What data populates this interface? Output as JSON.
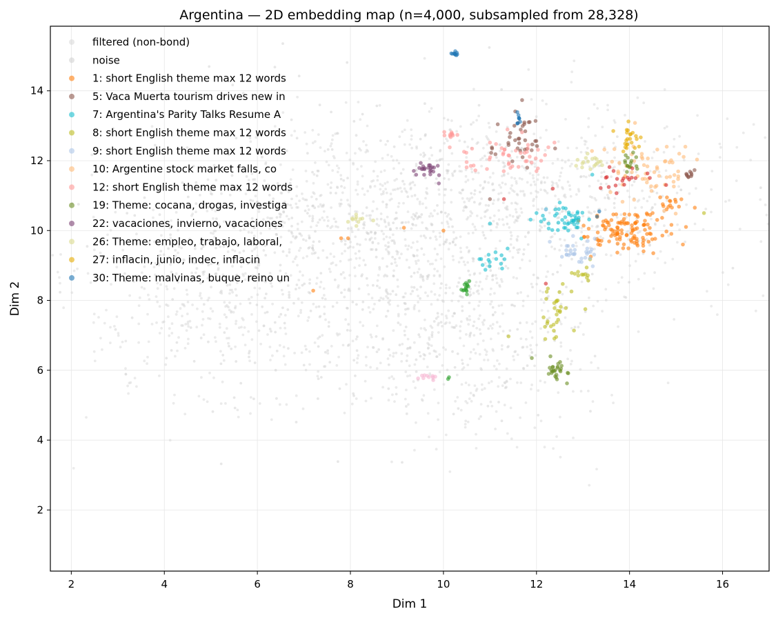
{
  "chart_data": {
    "type": "scatter",
    "title": "Argentina — 2D embedding map (n=4,000, subsampled from 28,328)",
    "xlabel": "Dim 1",
    "ylabel": "Dim 2",
    "xlim": [
      1.55,
      17.0
    ],
    "ylim": [
      0.25,
      15.85
    ],
    "xticks": [
      2,
      4,
      6,
      8,
      10,
      12,
      14,
      16
    ],
    "yticks": [
      2,
      4,
      6,
      8,
      10,
      12,
      14
    ],
    "grid": true,
    "legend_position": "top-left",
    "background_series": [
      {
        "name": "filtered (non-bond)",
        "color": "#d3d3d3",
        "regions": [
          {
            "cx": 5.2,
            "cy": 8.0,
            "sx": 1.6,
            "sy": 1.6,
            "n": 450
          },
          {
            "cx": 8.5,
            "cy": 10.5,
            "sx": 1.5,
            "sy": 1.4,
            "n": 500
          },
          {
            "cx": 10.5,
            "cy": 7.0,
            "sx": 1.3,
            "sy": 1.5,
            "n": 420
          },
          {
            "cx": 11.8,
            "cy": 11.0,
            "sx": 1.6,
            "sy": 1.3,
            "n": 380
          },
          {
            "cx": 13.8,
            "cy": 11.0,
            "sx": 1.5,
            "sy": 1.4,
            "n": 200
          }
        ]
      },
      {
        "name": "noise",
        "color": "#c9c9c9",
        "regions": [
          {
            "cx": 9.5,
            "cy": 9.0,
            "sx": 2.2,
            "sy": 2.2,
            "n": 300
          },
          {
            "cx": 6.5,
            "cy": 9.5,
            "sx": 2.0,
            "sy": 2.0,
            "n": 220
          }
        ]
      }
    ],
    "series": [
      {
        "name": "1: short English theme max 12 words",
        "color": "#ff7f0e",
        "clusters": [
          {
            "cx": 13.9,
            "cy": 10.0,
            "sx": 0.45,
            "sy": 0.3,
            "n": 120
          },
          {
            "cx": 14.9,
            "cy": 10.7,
            "sx": 0.2,
            "sy": 0.15,
            "n": 15
          }
        ],
        "points": [
          [
            9.15,
            10.08
          ],
          [
            10.0,
            10.0
          ],
          [
            7.8,
            9.78
          ],
          [
            7.95,
            9.78
          ],
          [
            7.2,
            8.28
          ]
        ]
      },
      {
        "name": "5: Vaca Muerta tourism drives new in",
        "color": "#8c564b",
        "clusters": [
          {
            "cx": 11.6,
            "cy": 12.6,
            "sx": 0.3,
            "sy": 0.3,
            "n": 35
          },
          {
            "cx": 15.3,
            "cy": 11.6,
            "sx": 0.08,
            "sy": 0.06,
            "n": 10
          }
        ],
        "points": [
          [
            11.4,
            12.45
          ],
          [
            11.7,
            12.1
          ],
          [
            11.0,
            10.9
          ],
          [
            11.8,
            11.8
          ],
          [
            12.4,
            12.35
          ]
        ]
      },
      {
        "name": "7: Argentina's Parity Talks Resume A",
        "color": "#17becf",
        "clusters": [
          {
            "cx": 12.6,
            "cy": 10.3,
            "sx": 0.3,
            "sy": 0.2,
            "n": 45
          },
          {
            "cx": 11.05,
            "cy": 9.2,
            "sx": 0.18,
            "sy": 0.15,
            "n": 15
          }
        ],
        "points": [
          [
            13.2,
            11.6
          ],
          [
            12.5,
            10.8
          ],
          [
            12.0,
            10.5
          ],
          [
            11.0,
            10.2
          ]
        ]
      },
      {
        "name": "8: short English theme max 12 words",
        "color": "#bcbd22",
        "clusters": [
          {
            "cx": 12.4,
            "cy": 7.7,
            "sx": 0.12,
            "sy": 0.3,
            "n": 30
          },
          {
            "cx": 13.0,
            "cy": 8.8,
            "sx": 0.15,
            "sy": 0.15,
            "n": 12
          }
        ],
        "points": [
          [
            15.6,
            10.5
          ],
          [
            13.05,
            7.75
          ],
          [
            11.4,
            6.97
          ]
        ]
      },
      {
        "name": "9: short English theme max 12 words",
        "color": "#aec7e8",
        "clusters": [
          {
            "cx": 12.9,
            "cy": 9.4,
            "sx": 0.2,
            "sy": 0.2,
            "n": 30
          }
        ],
        "points": [
          [
            12.2,
            10.6
          ],
          [
            13.1,
            9.7
          ]
        ]
      },
      {
        "name": "10: Argentine stock market falls, co",
        "color": "#ffbb78",
        "clusters": [
          {
            "cx": 14.4,
            "cy": 11.8,
            "sx": 0.45,
            "sy": 0.5,
            "n": 60
          }
        ],
        "points": [
          [
            14.8,
            12.4
          ],
          [
            15.2,
            12.4
          ]
        ]
      },
      {
        "name": "12: short English theme max 12 words",
        "color": "#ff9896",
        "clusters": [
          {
            "cx": 11.3,
            "cy": 12.1,
            "sx": 0.5,
            "sy": 0.25,
            "n": 45
          },
          {
            "cx": 10.2,
            "cy": 12.75,
            "sx": 0.1,
            "sy": 0.08,
            "n": 10
          }
        ],
        "points": [
          [
            12.1,
            12.0
          ],
          [
            12.0,
            11.7
          ]
        ]
      },
      {
        "name": "19: Theme: cocana, drogas, investiga",
        "color": "#6b8e23",
        "clusters": [
          {
            "cx": 12.4,
            "cy": 6.0,
            "sx": 0.1,
            "sy": 0.2,
            "n": 25
          },
          {
            "cx": 14.0,
            "cy": 11.9,
            "sx": 0.08,
            "sy": 0.15,
            "n": 15
          }
        ],
        "points": [
          [
            11.9,
            6.35
          ],
          [
            12.3,
            6.4
          ]
        ]
      },
      {
        "name": "22: vacaciones, invierno, vacaciones",
        "color": "#7b4173",
        "clusters": [
          {
            "cx": 9.65,
            "cy": 11.75,
            "sx": 0.12,
            "sy": 0.1,
            "n": 22
          }
        ],
        "points": [
          [
            9.9,
            11.35
          ]
        ]
      },
      {
        "name": "26: Theme: empleo, trabajo, laboral,",
        "color": "#dbdb8d",
        "clusters": [
          {
            "cx": 13.2,
            "cy": 11.95,
            "sx": 0.15,
            "sy": 0.12,
            "n": 18
          },
          {
            "cx": 8.15,
            "cy": 10.35,
            "sx": 0.15,
            "sy": 0.1,
            "n": 10
          }
        ],
        "points": [
          [
            7.95,
            10.25
          ]
        ]
      },
      {
        "name": "27: inflacin, junio, indec, inflacin",
        "color": "#e6ab02",
        "clusters": [
          {
            "cx": 14.0,
            "cy": 12.65,
            "sx": 0.18,
            "sy": 0.2,
            "n": 22
          }
        ],
        "points": [
          [
            13.65,
            12.85
          ]
        ]
      },
      {
        "name": "30: Theme: malvinas, buque, reino un",
        "color": "#1f77b4",
        "clusters": [
          {
            "cx": 10.25,
            "cy": 15.05,
            "sx": 0.04,
            "sy": 0.04,
            "n": 10
          },
          {
            "cx": 11.6,
            "cy": 13.2,
            "sx": 0.03,
            "sy": 0.08,
            "n": 8
          }
        ],
        "points": [
          [
            13.35,
            10.55
          ],
          [
            13.3,
            10.4
          ]
        ]
      },
      {
        "name": "",
        "color": "#d62728",
        "clusters": [
          {
            "cx": 13.8,
            "cy": 11.4,
            "sx": 0.25,
            "sy": 0.15,
            "n": 20
          }
        ],
        "points": [
          [
            12.35,
            11.2
          ],
          [
            12.2,
            8.48
          ],
          [
            11.3,
            10.9
          ]
        ]
      },
      {
        "name": "",
        "color": "#2ca02c",
        "clusters": [
          {
            "cx": 10.5,
            "cy": 8.35,
            "sx": 0.08,
            "sy": 0.1,
            "n": 14
          }
        ],
        "points": [
          [
            10.1,
            5.75
          ],
          [
            10.12,
            5.8
          ]
        ]
      },
      {
        "name": "",
        "color": "#f7b6d2",
        "clusters": [
          {
            "cx": 9.6,
            "cy": 5.82,
            "sx": 0.15,
            "sy": 0.05,
            "n": 10
          }
        ],
        "points": []
      }
    ]
  }
}
